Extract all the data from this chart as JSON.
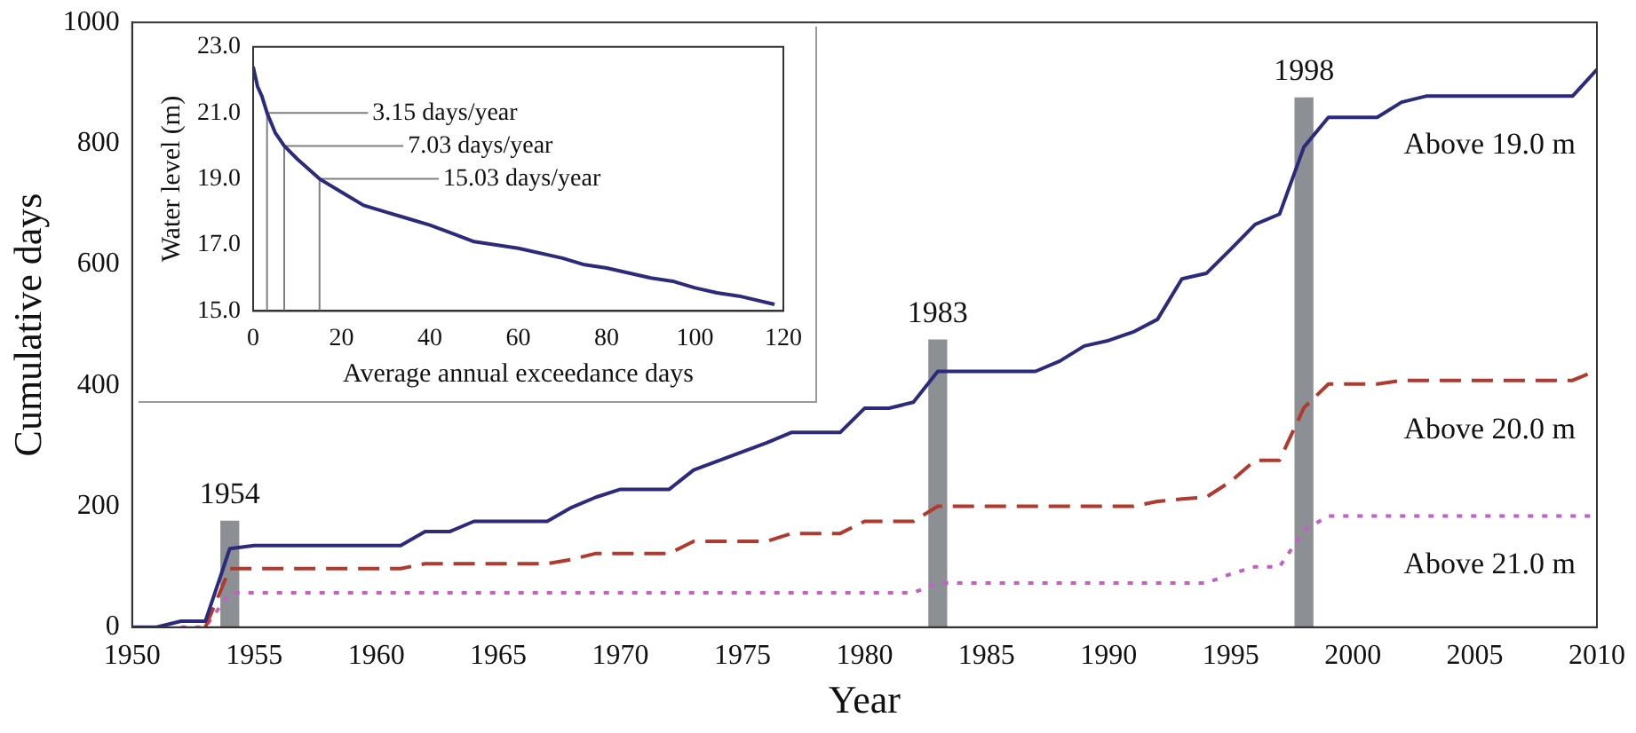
{
  "chart_data": [
    {
      "type": "line",
      "xlabel": "Year",
      "ylabel": "Cumulative days",
      "marker": "none",
      "legend": false,
      "grid": false,
      "x": [
        1950,
        1951,
        1952,
        1953,
        1954,
        1955,
        1956,
        1957,
        1958,
        1959,
        1960,
        1961,
        1962,
        1963,
        1964,
        1965,
        1966,
        1967,
        1968,
        1969,
        1970,
        1971,
        1972,
        1973,
        1974,
        1975,
        1976,
        1977,
        1978,
        1979,
        1980,
        1981,
        1982,
        1983,
        1984,
        1985,
        1986,
        1987,
        1988,
        1989,
        1990,
        1991,
        1992,
        1993,
        1994,
        1995,
        1996,
        1997,
        1998,
        1999,
        2000,
        2001,
        2002,
        2003,
        2004,
        2005,
        2006,
        2007,
        2008,
        2009,
        2010
      ],
      "xlim": [
        1950,
        2010
      ],
      "xticks": [
        1950,
        1955,
        1960,
        1965,
        1970,
        1975,
        1980,
        1985,
        1990,
        1995,
        2000,
        2005,
        2010
      ],
      "ylim": [
        0,
        1000
      ],
      "yticks": [
        0,
        200,
        400,
        600,
        800,
        1000
      ],
      "series": [
        {
          "name": "Above 19.0 m",
          "color": "#2b2a7c",
          "line_style": "solid",
          "values": [
            0,
            0,
            10,
            10,
            130,
            135,
            135,
            135,
            135,
            135,
            135,
            135,
            158,
            158,
            175,
            175,
            175,
            175,
            198,
            215,
            228,
            228,
            228,
            260,
            275,
            290,
            305,
            322,
            322,
            322,
            362,
            362,
            372,
            423,
            423,
            423,
            423,
            423,
            440,
            465,
            474,
            488,
            509,
            576,
            585,
            625,
            666,
            683,
            794,
            843,
            843,
            843,
            868,
            878,
            878,
            878,
            878,
            878,
            878,
            878,
            922
          ]
        },
        {
          "name": "Above 20.0 m",
          "color": "#b03a2e",
          "line_style": "dashed",
          "values": [
            null,
            null,
            null,
            0,
            97,
            97,
            97,
            97,
            97,
            97,
            97,
            97,
            105,
            105,
            105,
            105,
            105,
            105,
            112,
            122,
            122,
            122,
            122,
            142,
            142,
            142,
            142,
            155,
            155,
            155,
            175,
            175,
            175,
            200,
            200,
            200,
            200,
            200,
            200,
            200,
            200,
            200,
            208,
            212,
            215,
            241,
            276,
            276,
            363,
            402,
            402,
            402,
            408,
            408,
            408,
            408,
            408,
            408,
            408,
            408,
            425
          ]
        },
        {
          "name": "Above 21.0 m",
          "color": "#c45ec8",
          "line_style": "dotted",
          "values": [
            null,
            null,
            0,
            0,
            57,
            57,
            57,
            57,
            57,
            57,
            57,
            57,
            57,
            57,
            57,
            57,
            57,
            57,
            57,
            57,
            57,
            57,
            57,
            57,
            57,
            57,
            57,
            57,
            57,
            57,
            57,
            57,
            57,
            73,
            73,
            73,
            73,
            73,
            73,
            73,
            73,
            73,
            73,
            73,
            73,
            88,
            100,
            100,
            160,
            184,
            184,
            184,
            184,
            184,
            184,
            184,
            184,
            184,
            184,
            184,
            184
          ]
        },
        {
          "type": "bar",
          "color": "#8c9094",
          "x": [
            1954,
            1983,
            1998
          ],
          "values": [
            175,
            475,
            875
          ]
        }
      ],
      "annotations": [
        {
          "text": "1954",
          "x": 1954,
          "y": 175
        },
        {
          "text": "1983",
          "x": 1983,
          "y": 475
        },
        {
          "text": "1998",
          "x": 1998,
          "y": 875
        }
      ]
    },
    {
      "type": "line",
      "xlabel": "Average annual exceedance days",
      "ylabel": "Water level (m)",
      "marker": "none",
      "legend": false,
      "grid": false,
      "x": [
        0,
        1,
        2,
        3.15,
        5,
        7.03,
        10,
        15.03,
        20,
        25,
        30,
        35,
        40,
        45,
        50,
        55,
        60,
        70,
        75,
        80,
        90,
        95,
        100,
        105,
        110,
        118
      ],
      "xlim": [
        0,
        120
      ],
      "xticks": [
        0,
        20,
        40,
        60,
        80,
        100,
        120
      ],
      "ylim": [
        15,
        23
      ],
      "yticks": [
        {
          "value": 15,
          "label": "15.0"
        },
        {
          "value": 17,
          "label": "17.0"
        },
        {
          "value": 19,
          "label": "19.0"
        },
        {
          "value": 21,
          "label": "21.0"
        },
        {
          "value": 23,
          "label": "23.0"
        }
      ],
      "series": [
        {
          "color": "#2b2a7c",
          "line_style": "solid",
          "values": [
            22.4,
            21.8,
            21.5,
            21.0,
            20.4,
            20.0,
            19.6,
            19.0,
            18.6,
            18.2,
            18.0,
            17.8,
            17.6,
            17.35,
            17.1,
            17.0,
            16.9,
            16.6,
            16.4,
            16.3,
            16.0,
            15.9,
            15.7,
            15.55,
            15.45,
            15.2
          ]
        },
        {
          "color": "#808080",
          "line_style": "solid",
          "x": [
            3.15,
            3.15,
            26
          ],
          "values": [
            15,
            21,
            21
          ]
        },
        {
          "color": "#808080",
          "line_style": "solid",
          "x": [
            7.03,
            7.03,
            34
          ],
          "values": [
            15,
            20,
            20
          ]
        },
        {
          "color": "#808080",
          "line_style": "solid",
          "x": [
            15.03,
            15.03,
            42
          ],
          "values": [
            15,
            19,
            19
          ]
        }
      ],
      "annotations": [
        {
          "text": "3.15 days/year",
          "x": 27,
          "y": 21
        },
        {
          "text": "7.03 days/year",
          "x": 35,
          "y": 20
        },
        {
          "text": "15.03 days/year",
          "x": 43,
          "y": 19
        }
      ]
    }
  ]
}
